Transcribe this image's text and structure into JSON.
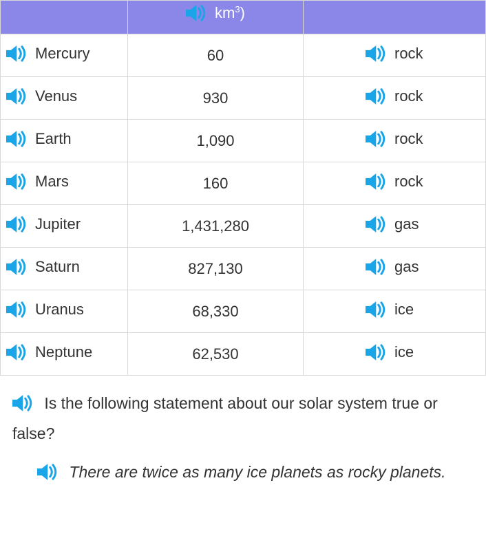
{
  "colors": {
    "header_bg": "#8a87e8",
    "header_text": "#ffffff",
    "border": "#d8d8d8",
    "body_text": "#333333",
    "speaker": "#1aa5e8"
  },
  "table": {
    "header_unit_prefix": "km",
    "header_unit_exp": "3",
    "header_unit_suffix": ")",
    "header_comp_fragment": "",
    "rows": [
      {
        "planet": "Mercury",
        "volume": "60",
        "composition": "rock"
      },
      {
        "planet": "Venus",
        "volume": "930",
        "composition": "rock"
      },
      {
        "planet": "Earth",
        "volume": "1,090",
        "composition": "rock"
      },
      {
        "planet": "Mars",
        "volume": "160",
        "composition": "rock"
      },
      {
        "planet": "Jupiter",
        "volume": "1,431,280",
        "composition": "gas"
      },
      {
        "planet": "Saturn",
        "volume": "827,130",
        "composition": "gas"
      },
      {
        "planet": "Uranus",
        "volume": "68,330",
        "composition": "ice"
      },
      {
        "planet": "Neptune",
        "volume": "62,530",
        "composition": "ice"
      }
    ]
  },
  "question": {
    "line1": "Is the following statement about our solar system true or false?",
    "statement": "There are twice as many ice planets as rocky planets."
  }
}
